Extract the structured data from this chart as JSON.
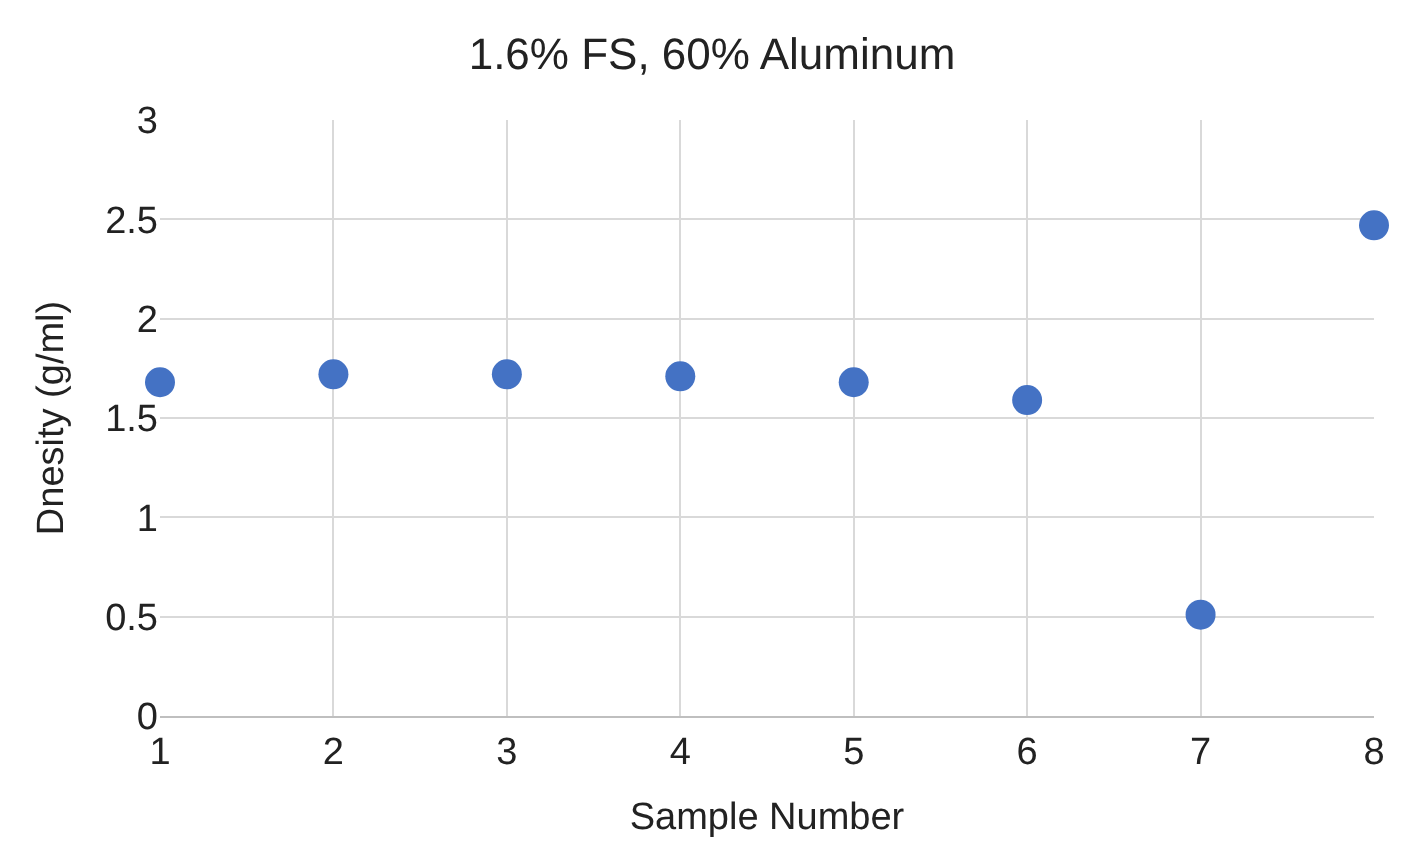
{
  "chart_data": {
    "type": "scatter",
    "title": "1.6% FS, 60% Aluminum",
    "xlabel": "Sample Number",
    "ylabel": "Dnesity (g/ml)",
    "x": [
      1,
      2,
      3,
      4,
      5,
      6,
      7,
      8
    ],
    "series": [
      {
        "color": "#4472c4",
        "values": [
          1.68,
          1.72,
          1.72,
          1.71,
          1.68,
          1.59,
          0.51,
          2.47
        ]
      }
    ],
    "xlim": [
      1,
      8
    ],
    "xticks": [
      1,
      2,
      3,
      4,
      5,
      6,
      7,
      8
    ],
    "ylim": [
      0,
      3
    ],
    "yticks": [
      0,
      0.5,
      1,
      1.5,
      2,
      2.5,
      3
    ],
    "grid": true,
    "marker": "circle"
  }
}
